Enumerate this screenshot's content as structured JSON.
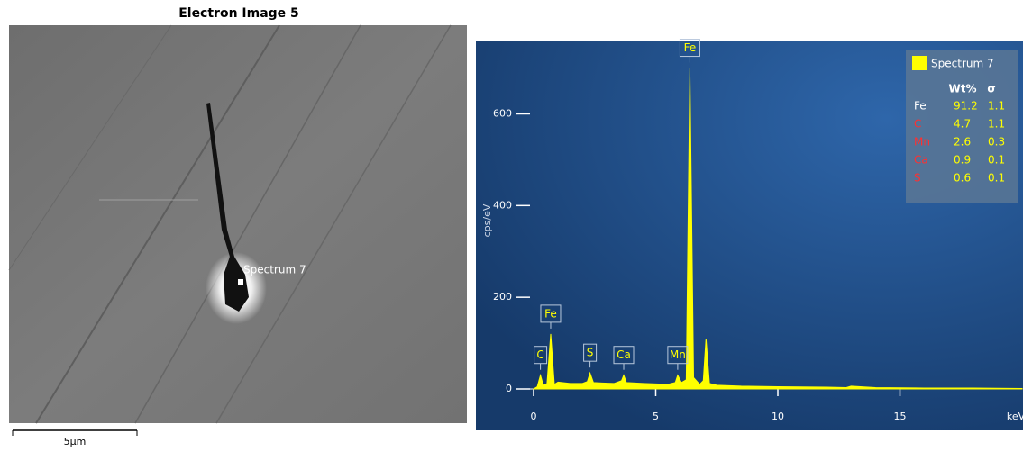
{
  "image": {
    "title": "Electron Image 5",
    "scale_bar": "5µm",
    "marker_label": "Spectrum 7"
  },
  "chart_data": {
    "type": "area",
    "ylabel": "cps/eV",
    "xlabel": "keV",
    "color": "#ffff00",
    "x": [
      0,
      0.15,
      0.28,
      0.4,
      0.55,
      0.7,
      0.85,
      1.0,
      1.5,
      2.0,
      2.2,
      2.31,
      2.45,
      2.8,
      3.3,
      3.6,
      3.69,
      3.8,
      4.5,
      5.5,
      5.8,
      5.9,
      6.05,
      6.25,
      6.4,
      6.55,
      6.8,
      6.95,
      7.06,
      7.2,
      7.5,
      8.5,
      10,
      12,
      12.8,
      13,
      14,
      16,
      18,
      20
    ],
    "values": [
      0,
      5,
      30,
      8,
      12,
      120,
      10,
      15,
      12,
      12,
      16,
      35,
      14,
      13,
      12,
      18,
      30,
      14,
      12,
      10,
      14,
      30,
      14,
      20,
      700,
      25,
      10,
      18,
      110,
      12,
      8,
      6,
      5,
      4,
      3,
      6,
      3,
      2,
      2,
      1
    ],
    "xlim": [
      0,
      20
    ],
    "xticks": [
      0,
      5,
      10,
      15
    ],
    "ylim": [
      0,
      760
    ],
    "yticks": [
      0,
      200,
      400,
      600
    ],
    "peak_labels": [
      {
        "label": "C",
        "x": 0.28,
        "y": 30
      },
      {
        "label": "Fe",
        "x": 0.7,
        "y": 120
      },
      {
        "label": "S",
        "x": 2.31,
        "y": 35
      },
      {
        "label": "Ca",
        "x": 3.69,
        "y": 30
      },
      {
        "label": "Mn",
        "x": 5.9,
        "y": 30
      },
      {
        "label": "Fe",
        "x": 6.4,
        "y": 700
      }
    ],
    "legend": {
      "name": "Spectrum 7",
      "columns": [
        "Wt%",
        "σ"
      ],
      "rows": [
        {
          "element": "Fe",
          "color": "#ffffff",
          "wt": "91.2",
          "sigma": "1.1"
        },
        {
          "element": "C",
          "color": "#ff3030",
          "wt": "4.7",
          "sigma": "1.1"
        },
        {
          "element": "Mn",
          "color": "#ff3030",
          "wt": "2.6",
          "sigma": "0.3"
        },
        {
          "element": "Ca",
          "color": "#ff3030",
          "wt": "0.9",
          "sigma": "0.1"
        },
        {
          "element": "S",
          "color": "#ff3030",
          "wt": "0.6",
          "sigma": "0.1"
        }
      ]
    }
  }
}
